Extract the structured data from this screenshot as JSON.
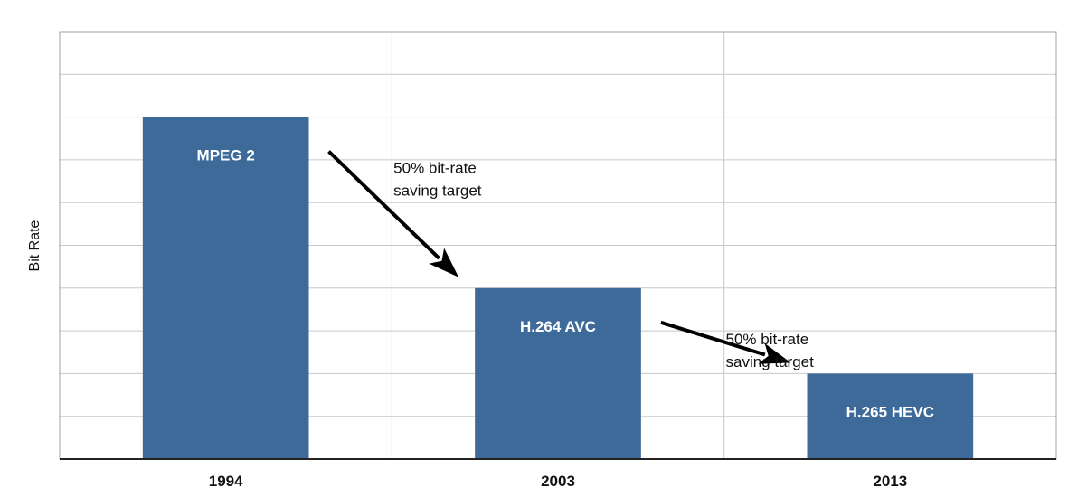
{
  "chart_data": {
    "type": "bar",
    "categories": [
      "1994",
      "2003",
      "2013"
    ],
    "values": [
      8,
      4,
      2
    ],
    "bar_labels": [
      "MPEG 2",
      "H.264 AVC",
      "H.265 HEVC"
    ],
    "title": "",
    "xlabel": "",
    "ylabel": "Bit Rate",
    "ylim": [
      0,
      10
    ],
    "grid": true,
    "y_tick_labels_shown": false,
    "bar_color": "#3d6a99",
    "annotations": [
      {
        "from": "1994",
        "to": "2003",
        "lines": [
          "50% bit-rate",
          "saving target"
        ]
      },
      {
        "from": "2003",
        "to": "2013",
        "lines": [
          "50% bit-rate",
          "saving target"
        ]
      }
    ]
  }
}
